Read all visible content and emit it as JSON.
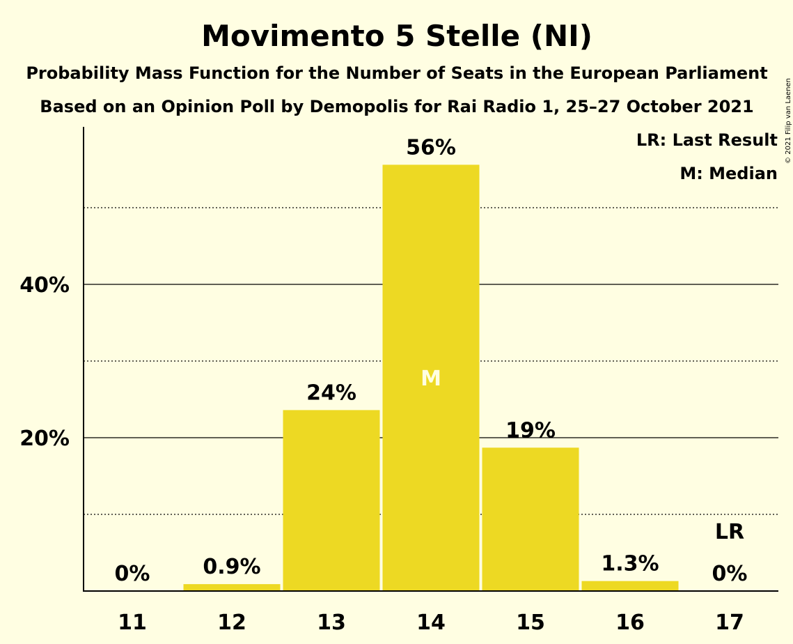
{
  "title": "Movimento 5 Stelle (NI)",
  "subtitle1": "Probability Mass Function for the Number of Seats in the European Parliament",
  "subtitle2": "Based on an Opinion Poll by Demopolis for Rai Radio 1, 25–27 October 2021",
  "copyright": "© 2021 Filip van Laenen",
  "legend": {
    "last_result": "LR: Last Result",
    "median": "M: Median"
  },
  "colors": {
    "bar": "#EDD923",
    "background": "#FFFEE2",
    "median_text": "#FFFEE2",
    "axis": "#000000"
  },
  "chart_data": {
    "type": "bar",
    "categories": [
      "11",
      "12",
      "13",
      "14",
      "15",
      "16",
      "17"
    ],
    "values": [
      0,
      0.9,
      23.6,
      55.6,
      18.7,
      1.3,
      0
    ],
    "value_labels": [
      "0%",
      "0.9%",
      "24%",
      "56%",
      "19%",
      "1.3%",
      "0%"
    ],
    "ylim": [
      0,
      60
    ],
    "y_ticks": [
      {
        "value": 20,
        "label": "20%"
      },
      {
        "value": 40,
        "label": "40%"
      }
    ],
    "minor_gridlines": [
      10,
      30,
      50
    ],
    "median_category": "14",
    "median_marker": "M",
    "last_result_category": "17",
    "last_result_marker": "LR",
    "legend_position": "top-right"
  }
}
